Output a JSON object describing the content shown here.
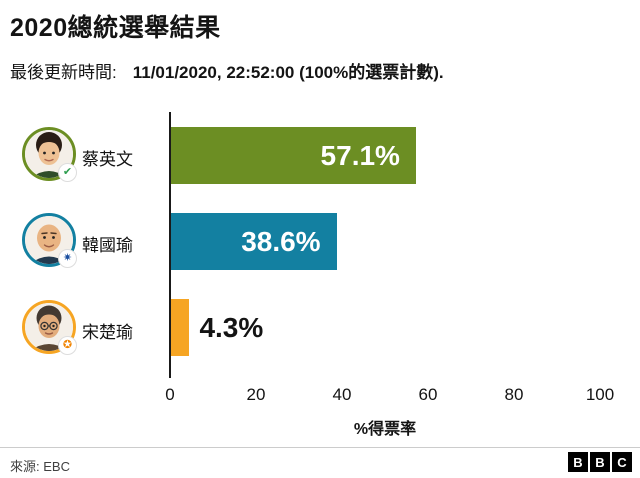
{
  "title": "2020總統選舉結果",
  "subtitle": {
    "label": "最後更新時間:",
    "value": "11/01/2020, 22:52:00 (100%的選票計數)."
  },
  "chart_data": {
    "type": "bar",
    "orientation": "horizontal",
    "title": "2020總統選舉結果",
    "xlabel": "%得票率",
    "xlim": [
      0,
      100
    ],
    "x_ticks": [
      "0",
      "20",
      "40",
      "60",
      "80",
      "100"
    ],
    "grid": false,
    "categories": [
      "蔡英文",
      "韓國瑜",
      "宋楚瑜"
    ],
    "values": [
      57.1,
      38.6,
      4.3
    ],
    "candidates": [
      {
        "name": "蔡英文",
        "value": 57.1,
        "label": "57.1%",
        "color": "#6c8e23",
        "badge_color": "#2e9e4f",
        "badge_glyph": "✔"
      },
      {
        "name": "韓國瑜",
        "value": 38.6,
        "label": "38.6%",
        "color": "#1380a1",
        "badge_color": "#1b4fa0",
        "badge_glyph": "✷"
      },
      {
        "name": "宋楚瑜",
        "value": 4.3,
        "label": "4.3%",
        "color": "#f6a523",
        "badge_color": "#f08300",
        "badge_glyph": "✪"
      }
    ]
  },
  "footer": {
    "source": "來源: EBC",
    "logo_letters": [
      "B",
      "B",
      "C"
    ]
  }
}
